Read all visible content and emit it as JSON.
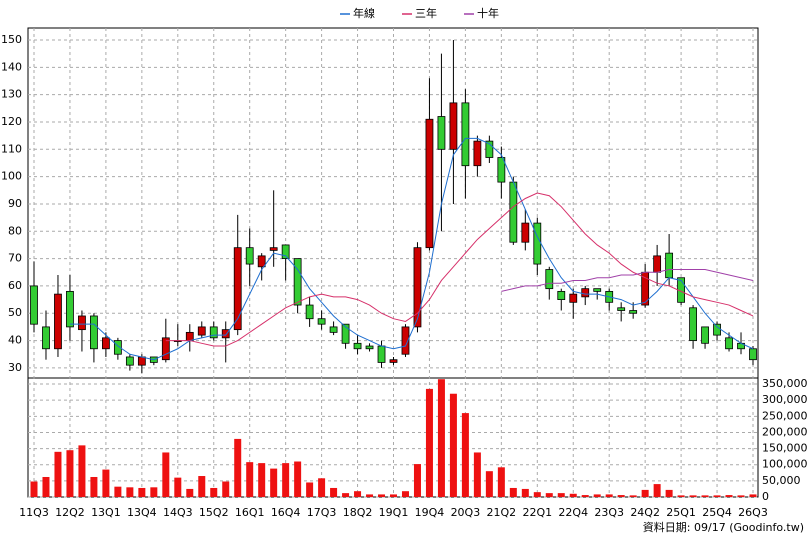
{
  "chart_data": [
    {
      "type": "candlestick",
      "categories": [
        "11Q3",
        null,
        null,
        "12Q2",
        null,
        null,
        "13Q1",
        null,
        null,
        "13Q4",
        null,
        null,
        "14Q3",
        null,
        null,
        "15Q2",
        null,
        null,
        "16Q1",
        null,
        null,
        "16Q4",
        null,
        null,
        "17Q3",
        null,
        null,
        "18Q2",
        null,
        null,
        "19Q1",
        null,
        null,
        "19Q4",
        null,
        null,
        "20Q3",
        null,
        null,
        "21Q2",
        null,
        null,
        "22Q1",
        null,
        null,
        "22Q4",
        null,
        null,
        "23Q3",
        null,
        null,
        "24Q2",
        null,
        null,
        "25Q1",
        null,
        null,
        "25Q4",
        null,
        null,
        "26Q3"
      ],
      "open": [
        60,
        45,
        37,
        58,
        44,
        49,
        37,
        40,
        34,
        31,
        34,
        33,
        40,
        40,
        42,
        45,
        41,
        44,
        74,
        67,
        73,
        75,
        70,
        53,
        48,
        45,
        46,
        39,
        38,
        38,
        32,
        35,
        45,
        74,
        122,
        110,
        127,
        104,
        113,
        107,
        98,
        76,
        83,
        66,
        58,
        54,
        56,
        59,
        58,
        52,
        51,
        53,
        65,
        72,
        63,
        52,
        45,
        46,
        41,
        39,
        37
      ],
      "high": [
        69,
        51,
        64,
        64,
        51,
        50,
        43,
        41,
        35,
        35,
        34,
        48,
        46,
        46,
        47,
        47,
        47,
        86,
        81,
        72,
        95,
        75,
        70,
        56,
        51,
        47,
        46,
        42,
        39,
        40,
        34,
        46,
        76,
        136,
        145,
        150,
        132,
        115,
        115,
        111,
        100,
        88,
        85,
        67,
        59,
        59,
        60,
        59,
        59,
        54,
        54,
        68,
        75,
        79,
        63,
        53,
        45,
        47,
        43,
        43,
        38
      ],
      "low": [
        43,
        33,
        34,
        40,
        36,
        32,
        34,
        33,
        29,
        28,
        31,
        32,
        38,
        36,
        41,
        40,
        32,
        42,
        60,
        62,
        67,
        62,
        50,
        45,
        44,
        42,
        37,
        35,
        36,
        30,
        31,
        34,
        43,
        73,
        80,
        90,
        92,
        100,
        105,
        92,
        75,
        73,
        64,
        55,
        51,
        48,
        53,
        55,
        51,
        47,
        48,
        52,
        60,
        60,
        53,
        37,
        37,
        40,
        36,
        35,
        31
      ],
      "close": [
        46,
        37,
        57,
        45,
        49,
        37,
        41,
        35,
        31,
        34,
        32,
        41,
        40,
        43,
        45,
        41,
        44,
        74,
        68,
        71,
        74,
        70,
        53,
        48,
        46,
        43,
        39,
        37,
        37,
        32,
        33,
        45,
        74,
        121,
        110,
        127,
        104,
        113,
        107,
        98,
        76,
        83,
        68,
        59,
        55,
        57,
        59,
        58,
        54,
        51,
        50,
        65,
        71,
        63,
        54,
        40,
        39,
        42,
        37,
        37,
        33
      ],
      "series": [
        {
          "name": "年線",
          "color": "#1f6fd0",
          "values": [
            null,
            null,
            null,
            46,
            46,
            46,
            42,
            38,
            35,
            34,
            33,
            35,
            37,
            40,
            41,
            42,
            42,
            48,
            57,
            66,
            72,
            71,
            66,
            59,
            54,
            49,
            45,
            42,
            40,
            38,
            37,
            38,
            48,
            65,
            90,
            108,
            114,
            114,
            112,
            108,
            98,
            88,
            78,
            70,
            63,
            58,
            57,
            57,
            56,
            55,
            53,
            54,
            58,
            63,
            62,
            56,
            50,
            45,
            42,
            39,
            37
          ]
        },
        {
          "name": "三年",
          "color": "#d6306a",
          "values": [
            null,
            null,
            null,
            null,
            null,
            null,
            null,
            null,
            null,
            null,
            null,
            40,
            40,
            40,
            39,
            38,
            38,
            40,
            43,
            46,
            49,
            52,
            54,
            56,
            57,
            56,
            56,
            55,
            53,
            50,
            48,
            47,
            50,
            55,
            62,
            67,
            72,
            77,
            81,
            85,
            89,
            92,
            94,
            93,
            89,
            84,
            79,
            75,
            72,
            68,
            65,
            63,
            61,
            60,
            58,
            56,
            55,
            54,
            53,
            51,
            49
          ]
        },
        {
          "name": "十年",
          "color": "#a040a8",
          "values": [
            null,
            null,
            null,
            null,
            null,
            null,
            null,
            null,
            null,
            null,
            null,
            null,
            null,
            null,
            null,
            null,
            null,
            null,
            null,
            null,
            null,
            null,
            null,
            null,
            null,
            null,
            null,
            null,
            null,
            null,
            null,
            null,
            null,
            null,
            null,
            null,
            null,
            null,
            null,
            58,
            59,
            60,
            60,
            61,
            61,
            62,
            62,
            63,
            63,
            64,
            64,
            65,
            65,
            66,
            66,
            66,
            66,
            65,
            64,
            63,
            62
          ]
        }
      ],
      "up_color": "#cc0000",
      "down_color": "#33cc33",
      "ylim": [
        26.3,
        154.4
      ],
      "yticks": [
        30,
        40,
        50,
        60,
        70,
        80,
        90,
        100,
        110,
        120,
        130,
        140,
        150
      ],
      "grid": true,
      "footnote": "資料日期: 09/17 (Goodinfo.tw)"
    },
    {
      "type": "bar",
      "color": "#ee1111",
      "values": [
        48000,
        62000,
        140000,
        145000,
        160000,
        62000,
        85000,
        32000,
        30000,
        28000,
        30000,
        138000,
        60000,
        25000,
        65000,
        28000,
        48000,
        180000,
        108000,
        105000,
        88000,
        105000,
        110000,
        45000,
        58000,
        28000,
        12000,
        18000,
        8000,
        8000,
        8000,
        18000,
        102000,
        335000,
        365000,
        320000,
        260000,
        138000,
        80000,
        92000,
        28000,
        25000,
        15000,
        12000,
        12000,
        10000,
        6000,
        8000,
        8000,
        6000,
        5000,
        22000,
        40000,
        22000,
        5000,
        5000,
        5000,
        5000,
        6000,
        5000,
        8000
      ],
      "ylim": [
        0,
        368750
      ],
      "yticks": [
        0,
        {
          "value": 50000,
          "label": "50,000"
        },
        {
          "value": 100000,
          "label": "100,000"
        },
        {
          "value": 150000,
          "label": "150,000"
        },
        {
          "value": 200000,
          "label": "200,000"
        },
        {
          "value": 250000,
          "label": "250,000"
        },
        {
          "value": 300000,
          "label": "300,000"
        },
        {
          "value": 350000,
          "label": "350,000"
        }
      ],
      "grid": true
    }
  ]
}
